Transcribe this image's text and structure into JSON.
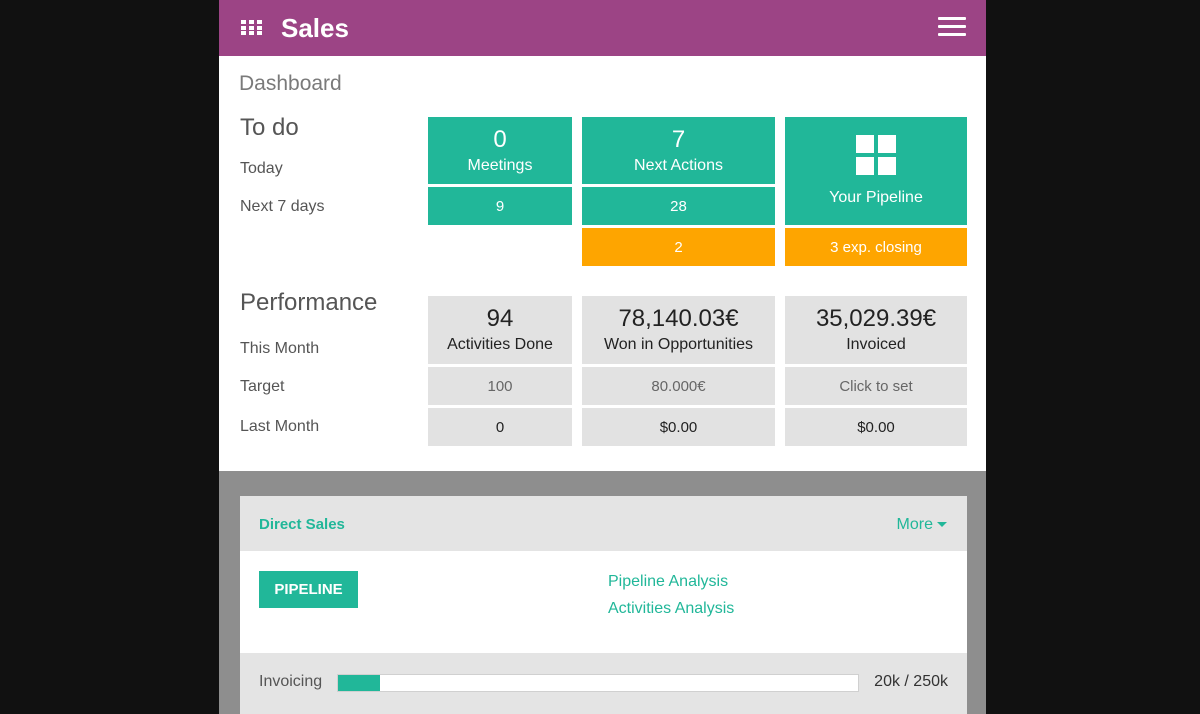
{
  "header": {
    "apps_icon": "grid-icon",
    "title": "Sales",
    "menu_icon": "hamburger-icon"
  },
  "breadcrumb": "Dashboard",
  "todo": {
    "title": "To do",
    "row_today": "Today",
    "row_next7": "Next 7 days",
    "meetings": {
      "today": "0",
      "label": "Meetings",
      "next7": "9"
    },
    "next_actions": {
      "today": "7",
      "label": "Next Actions",
      "next7": "28",
      "overdue": "2"
    },
    "pipeline": {
      "icon": "pipeline-grid-icon",
      "label": "Your Pipeline",
      "exp_closing": "3 exp. closing"
    }
  },
  "performance": {
    "title": "Performance",
    "row_this_month": "This Month",
    "row_target": "Target",
    "row_last_month": "Last Month",
    "activities": {
      "value": "94",
      "label": "Activities Done",
      "target": "100",
      "last_month": "0"
    },
    "won": {
      "value": "78,140.03€",
      "label": "Won in Opportunities",
      "target": "80.000€",
      "last_month": "$0.00"
    },
    "invoiced": {
      "value": "35,029.39€",
      "label": "Invoiced",
      "target": "Click to set",
      "last_month": "$0.00"
    }
  },
  "team_card": {
    "name": "Direct Sales",
    "more_label": "More",
    "pipeline_button": "PIPELINE",
    "links": [
      "Pipeline Analysis",
      "Activities Analysis"
    ],
    "invoicing": {
      "label": "Invoicing",
      "progress": 0.08,
      "value": "20k / 250k"
    }
  },
  "colors": {
    "topbar": "#9c4485",
    "teal": "#21b799",
    "orange": "#fea500",
    "tile_grey": "#e2e2e2"
  }
}
